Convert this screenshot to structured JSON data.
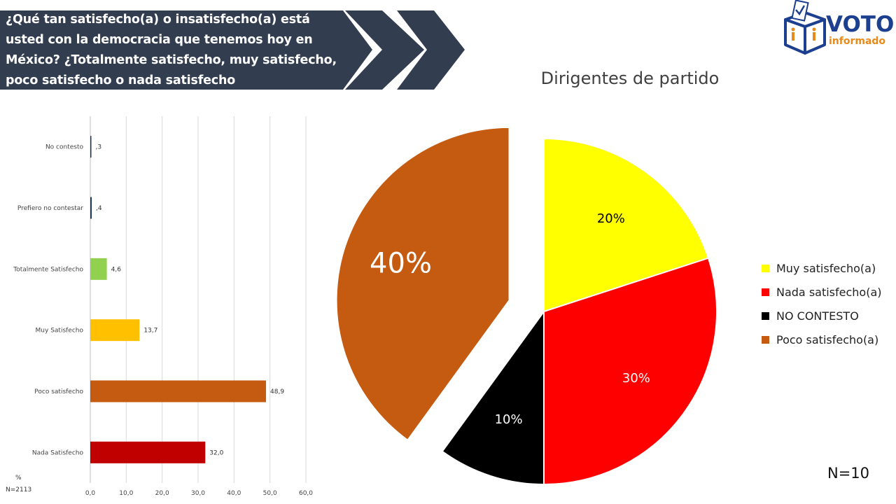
{
  "header": {
    "question": "¿Qué tan satisfecho(a) o insatisfecho(a) está usted con la democracia que tenemos hoy en México? ¿Totalmente satisfecho, muy satisfecho, poco satisfecho o nada satisfecho",
    "bg_color": "#323d4f"
  },
  "logo": {
    "line1": "VOTO",
    "line2": "informado",
    "icon": "ballot-box-icon",
    "colors": {
      "primary": "#1d3f8f",
      "accent": "#e88a1a"
    }
  },
  "chart_data": [
    {
      "type": "bar",
      "orientation": "horizontal",
      "categories": [
        "No contesto",
        "Prefiero no contestar",
        "Totalmente Satisfecho",
        "Muy Satisfecho",
        "Poco satisfecho",
        "Nada Satisfecho"
      ],
      "values": [
        0.3,
        0.4,
        4.6,
        13.7,
        48.9,
        32.0
      ],
      "value_labels": [
        ",3",
        ",4",
        "4,6",
        "13,7",
        "48,9",
        "32,0"
      ],
      "colors": [
        "#1f3864",
        "#1f3864",
        "#92d050",
        "#ffc000",
        "#c55a11",
        "#c00000"
      ],
      "xlim": [
        0,
        60
      ],
      "ticks": [
        0,
        10,
        20,
        30,
        40,
        50,
        60
      ],
      "tick_labels": [
        "0,0",
        "10,0",
        "20,0",
        "30,0",
        "40,0",
        "50,0",
        "60,0"
      ],
      "grid": true,
      "unit_label": "%",
      "n_label": "N=2113"
    },
    {
      "type": "pie",
      "title": "Dirigentes de partido",
      "slices": [
        {
          "label": "Muy satisfecho(a)",
          "value": 20,
          "display": "20%",
          "color": "#ffff00",
          "exploded": false
        },
        {
          "label": "Nada satisfecho(a)",
          "value": 30,
          "display": "30%",
          "color": "#ff0000",
          "exploded": false
        },
        {
          "label": "NO CONTESTO",
          "value": 10,
          "display": "10%",
          "color": "#000000",
          "exploded": false
        },
        {
          "label": "Poco satisfecho(a)",
          "value": 40,
          "display": "40%",
          "color": "#c55a11",
          "exploded": true
        }
      ],
      "label_colors": [
        "#000000",
        "#ffffff",
        "#ffffff",
        "#ffffff"
      ],
      "legend_position": "right",
      "n_label": "N=10"
    }
  ]
}
